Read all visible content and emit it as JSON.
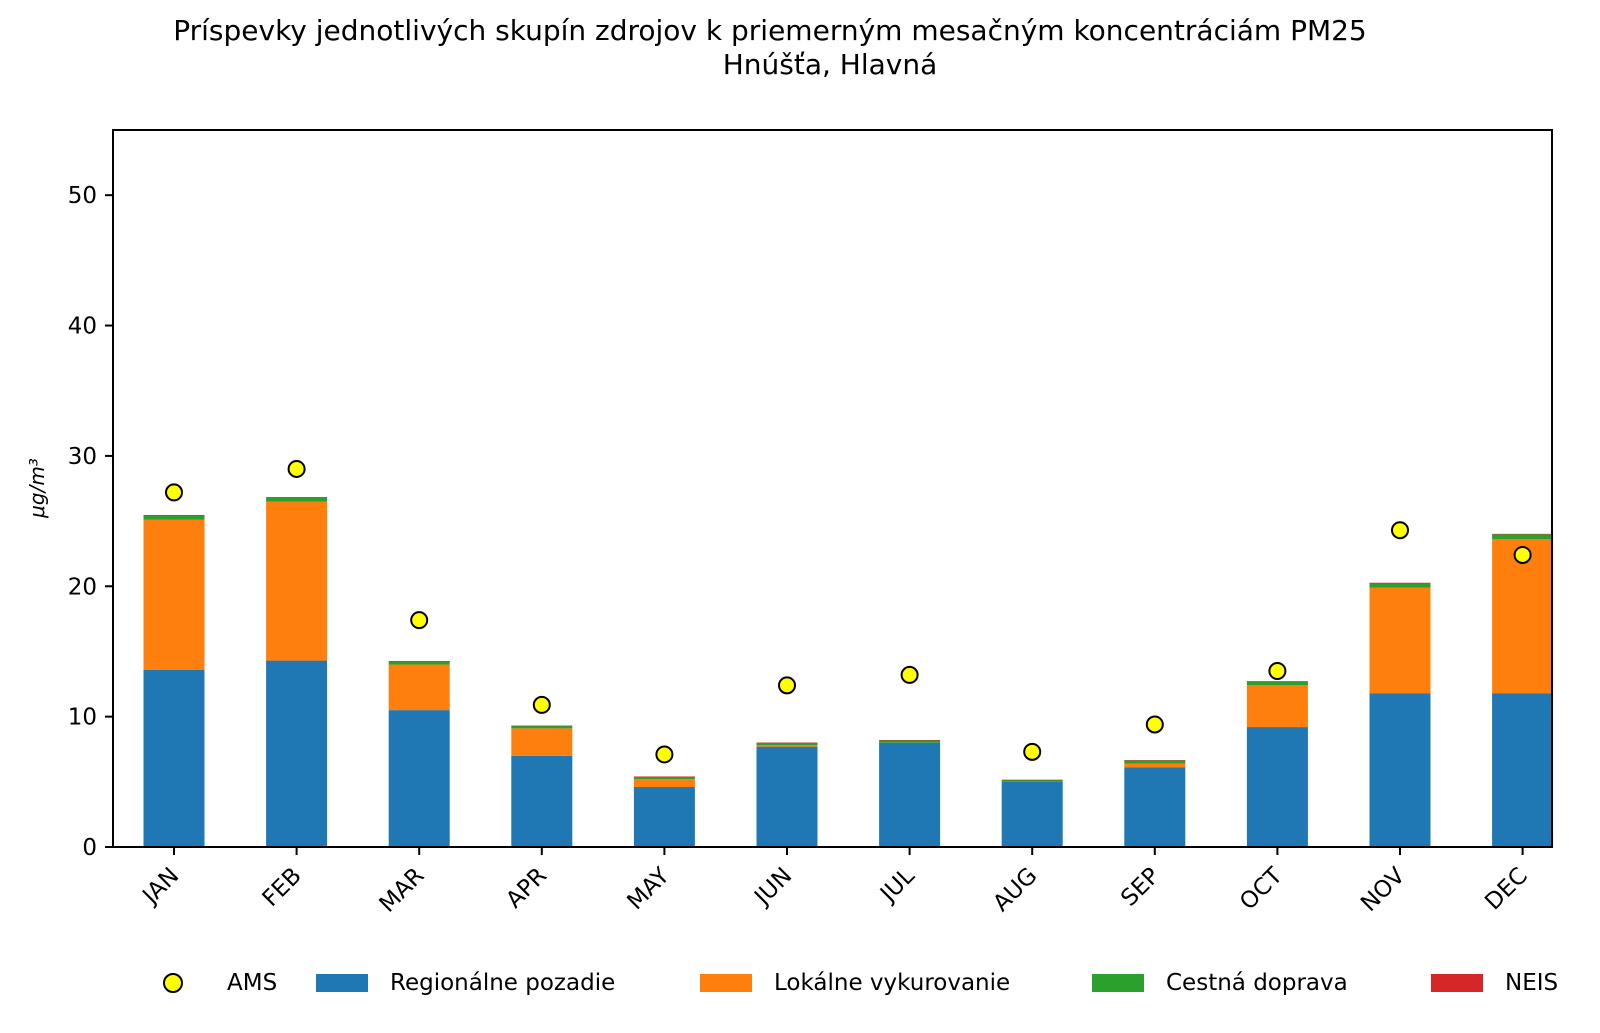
{
  "chart_data": {
    "type": "bar",
    "stacked": true,
    "title": "Príspevky jednotlivých skupín zdrojov k priemerným mesačným koncentráciám PM25",
    "subtitle": "Hnúšťa, Hlavná",
    "xlabel": "",
    "ylabel": "μg/m³",
    "ylim": [
      0,
      55
    ],
    "yticks": [
      0,
      10,
      20,
      30,
      40,
      50
    ],
    "grid": false,
    "legend_position": "bottom",
    "categories": [
      "JAN",
      "FEB",
      "MAR",
      "APR",
      "MAY",
      "JUN",
      "JUL",
      "AUG",
      "SEP",
      "OCT",
      "NOV",
      "DEC"
    ],
    "series": [
      {
        "name": "Regionálne pozadie",
        "color": "#1f77b4",
        "values": [
          13.6,
          14.3,
          10.5,
          7.0,
          4.6,
          7.7,
          8.0,
          5.0,
          6.1,
          9.2,
          11.8,
          11.8
        ]
      },
      {
        "name": "Lokálne vykurovanie",
        "color": "#ff7f0e",
        "values": [
          11.5,
          12.2,
          3.5,
          2.1,
          0.6,
          0.1,
          0.0,
          0.0,
          0.3,
          3.2,
          8.1,
          11.8
        ]
      },
      {
        "name": "Cestná doprava",
        "color": "#2ca02c",
        "values": [
          0.35,
          0.3,
          0.25,
          0.2,
          0.2,
          0.2,
          0.2,
          0.15,
          0.25,
          0.3,
          0.35,
          0.4
        ]
      },
      {
        "name": "NEIS",
        "color": "#d62728",
        "values": [
          0.02,
          0.05,
          0.02,
          0.01,
          0.01,
          0.01,
          0.01,
          0.01,
          0.01,
          0.02,
          0.02,
          0.02
        ]
      }
    ],
    "markers": {
      "name": "AMS",
      "color": "#ffff00",
      "values": [
        27.2,
        29.0,
        17.4,
        10.9,
        7.1,
        12.4,
        13.2,
        7.3,
        9.4,
        13.5,
        24.3,
        22.4
      ]
    }
  }
}
